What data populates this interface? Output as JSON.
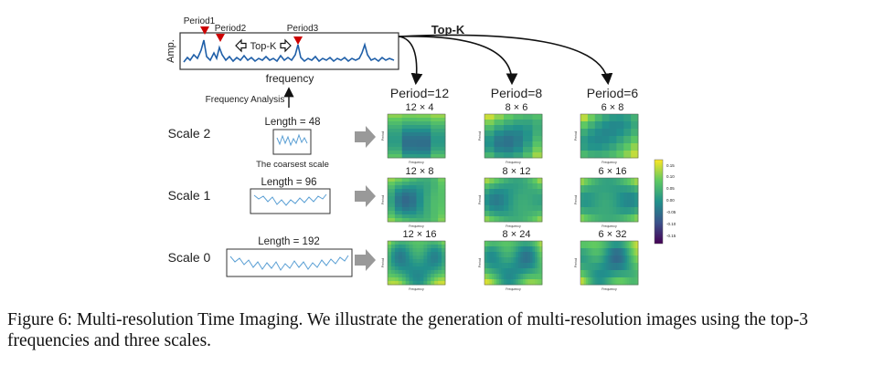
{
  "spectrum": {
    "y_label": "Amp.",
    "x_label": "frequency",
    "peaks": [
      "Period1",
      "Period2",
      "Period3"
    ],
    "topk_label": "Top-K"
  },
  "topk_arrow_label": "Top-K",
  "frequency_analysis_label": "Frequency Analysis",
  "columns": [
    "Period=12",
    "Period=8",
    "Period=6"
  ],
  "scales": [
    {
      "name": "Scale 2",
      "length_label": "Length = 48",
      "note": "The coarsest scale",
      "grids": [
        "12 × 4",
        "8 × 6",
        "6 × 8"
      ]
    },
    {
      "name": "Scale 1",
      "length_label": "Length = 96",
      "note": "",
      "grids": [
        "12 × 8",
        "8 × 12",
        "6 × 16"
      ]
    },
    {
      "name": "Scale 0",
      "length_label": "Length = 192",
      "note": "",
      "grids": [
        "12 × 16",
        "8 × 24",
        "6 × 32"
      ]
    }
  ],
  "heatmap_axis": {
    "y_label": "Period",
    "x_label": "Frequency"
  },
  "colorbar_ticks": [
    "0.15",
    "0.10",
    "0.05",
    "0.00",
    "-0.05",
    "-0.10",
    "-0.15"
  ],
  "colors": {
    "signal": "#5a9fd4",
    "spectrum": "#1f5fa8",
    "peak_marker": "#cc0000",
    "viridis": [
      "#440154",
      "#3b528b",
      "#21918c",
      "#5ec962",
      "#fde725"
    ]
  },
  "caption": "Figure 6: Multi-resolution Time Imaging. We illustrate the generation of multi-resolution images using the top-3 frequencies and three scales."
}
